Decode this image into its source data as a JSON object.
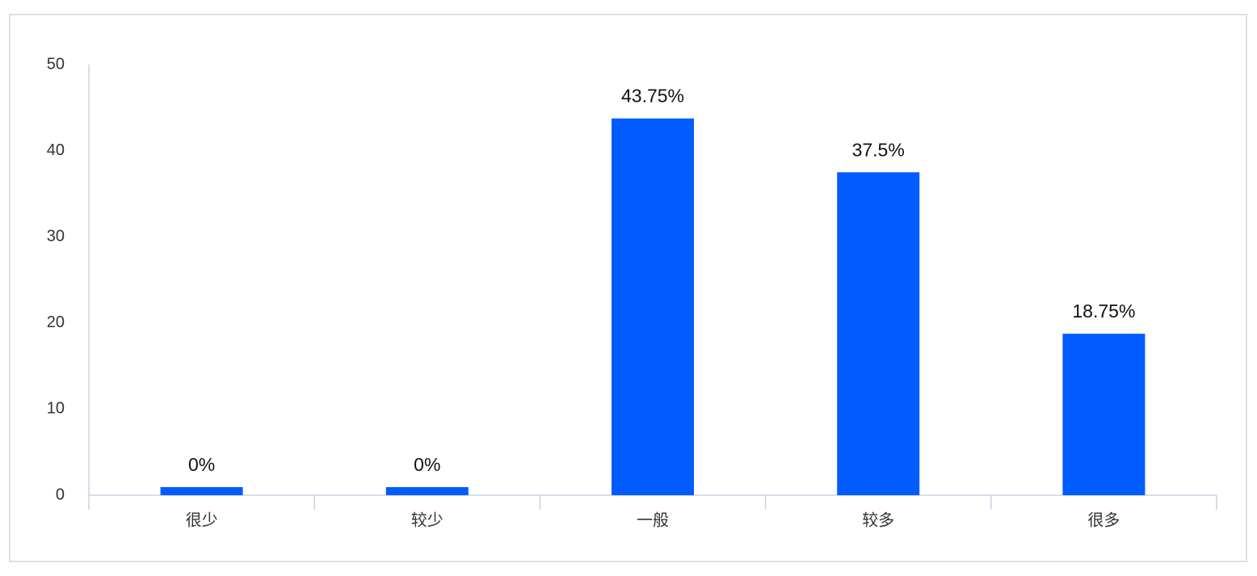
{
  "chart_data": {
    "type": "bar",
    "categories": [
      "很少",
      "较少",
      "一般",
      "较多",
      "很多"
    ],
    "values": [
      0,
      0,
      43.75,
      37.5,
      18.75
    ],
    "value_labels": [
      "0%",
      "0%",
      "43.75%",
      "37.5%",
      "18.75%"
    ],
    "color": "#005cff",
    "ylim": [
      0,
      50
    ],
    "yticks": [
      0,
      10,
      20,
      30,
      40,
      50
    ],
    "grid": false
  }
}
